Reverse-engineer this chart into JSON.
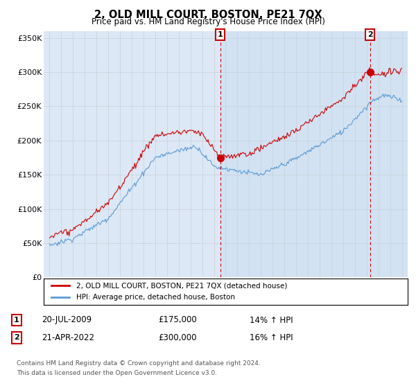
{
  "title": "2, OLD MILL COURT, BOSTON, PE21 7QX",
  "subtitle": "Price paid vs. HM Land Registry's House Price Index (HPI)",
  "legend_line1": "2, OLD MILL COURT, BOSTON, PE21 7QX (detached house)",
  "legend_line2": "HPI: Average price, detached house, Boston",
  "annotation1_label": "1",
  "annotation1_date": "20-JUL-2009",
  "annotation1_price": "£175,000",
  "annotation1_hpi": "14% ↑ HPI",
  "annotation1_year": 2009.54,
  "annotation1_value": 175000,
  "annotation2_label": "2",
  "annotation2_date": "21-APR-2022",
  "annotation2_price": "£300,000",
  "annotation2_hpi": "16% ↑ HPI",
  "annotation2_year": 2022.3,
  "annotation2_value": 300000,
  "footer1": "Contains HM Land Registry data © Crown copyright and database right 2024.",
  "footer2": "This data is licensed under the Open Government Licence v3.0.",
  "red_color": "#cc0000",
  "blue_color": "#5b9bd5",
  "shade_color": "#dde8f5",
  "annotation_color": "#cc0000",
  "background_color": "#ffffff",
  "grid_color": "#c8d0d8",
  "ylim": [
    0,
    360000
  ],
  "xlim_start": 1994.5,
  "xlim_end": 2025.5
}
